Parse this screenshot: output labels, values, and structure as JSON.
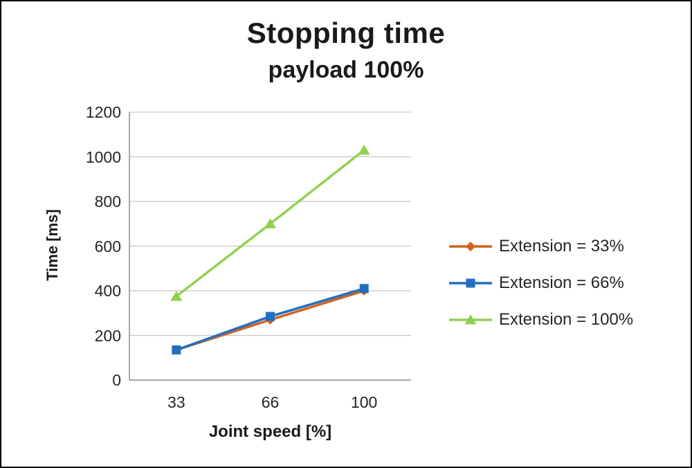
{
  "chart_data": {
    "type": "line",
    "title": "Stopping time",
    "subtitle": "payload 100%",
    "xlabel": "Joint speed [%]",
    "ylabel": "Time [ms]",
    "categories": [
      "33",
      "66",
      "100"
    ],
    "series": [
      {
        "name": "Extension = 33%",
        "color": "#D3611B",
        "marker": "diamond",
        "values": [
          135,
          270,
          400
        ]
      },
      {
        "name": "Extension = 66%",
        "color": "#2170C0",
        "marker": "square",
        "values": [
          135,
          285,
          410
        ]
      },
      {
        "name": "Extension = 100%",
        "color": "#92D050",
        "marker": "triangle",
        "values": [
          375,
          700,
          1030
        ]
      }
    ],
    "ylim": [
      0,
      1200
    ],
    "ytick_step": 200,
    "grid": true,
    "legend_position": "right",
    "gridline_color": "#C6C6C6",
    "axis_color": "#8C8C8C"
  }
}
